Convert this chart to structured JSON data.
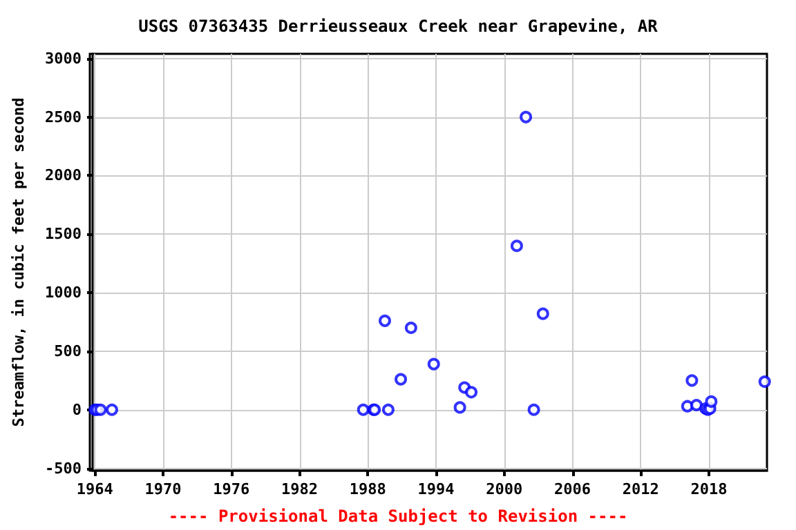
{
  "chart_data": {
    "type": "scatter",
    "title": "USGS 07363435 Derrieusseaux Creek near Grapevine, AR",
    "ylabel": "Streamflow, in cubic feet per second",
    "annotations": [
      "---- Provisional Data Subject to Revision ----"
    ],
    "series": [
      {
        "color": "#0000ff",
        "x": [
          1964.0,
          1964.2,
          1964.5,
          1965.5,
          1987.6,
          1988.5,
          1988.6,
          1989.8,
          1989.5,
          1990.9,
          1991.8,
          1993.8,
          1996.1,
          1996.5,
          1997.1,
          2001.1,
          2001.9,
          2002.6,
          2003.4,
          2016.1,
          2016.5,
          2016.9,
          2017.7,
          2017.9,
          2018.1,
          2018.2,
          2022.9
        ],
        "values": [
          0,
          0,
          0,
          0,
          0,
          0,
          0,
          0,
          760,
          260,
          700,
          390,
          20,
          190,
          150,
          1400,
          2500,
          0,
          820,
          30,
          250,
          40,
          10,
          0,
          10,
          70,
          240
        ]
      }
    ],
    "xlim": [
      1963.8,
      2023.1
    ],
    "xticks": [
      1964,
      1970,
      1976,
      1982,
      1988,
      1994,
      2000,
      2006,
      2012,
      2018
    ],
    "ylim": [
      -520,
      3040
    ],
    "yticks": [
      -500,
      0,
      500,
      1000,
      1500,
      2000,
      2500,
      3000
    ],
    "grid": true,
    "marker": "circle"
  }
}
